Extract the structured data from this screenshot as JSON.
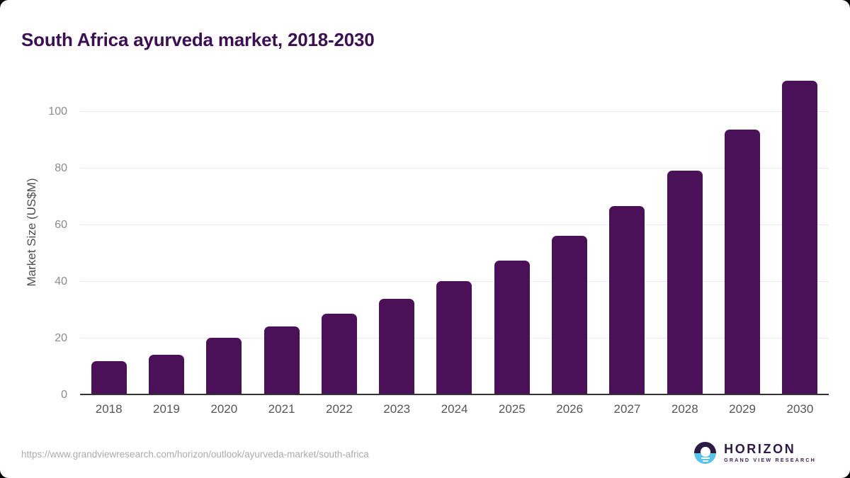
{
  "page": {
    "title": "South Africa ayurveda market, 2018-2030"
  },
  "colors": {
    "bar": "#4a1158",
    "title_text": "#3a0f53",
    "logo_purple": "#2e1a47",
    "logo_subtitle_purple": "#3f2158",
    "logo_blue": "#5ac3ec",
    "gridline": "#eaeaea",
    "axis_line": "#343434"
  },
  "chart_data": {
    "type": "bar",
    "title": "South Africa ayurveda market, 2018-2030",
    "categories": [
      "2018",
      "2019",
      "2020",
      "2021",
      "2022",
      "2023",
      "2024",
      "2025",
      "2026",
      "2027",
      "2028",
      "2029",
      "2030"
    ],
    "values": [
      12.1,
      14.2,
      20.3,
      24.2,
      28.8,
      34.1,
      40.3,
      47.6,
      56.3,
      66.8,
      79.2,
      93.8,
      111.0
    ],
    "xlabel": "",
    "ylabel": "Market Size (US$M)",
    "ylim": [
      0,
      115
    ],
    "y_ticks": [
      0,
      20,
      40,
      60,
      80,
      100
    ],
    "grid": "horizontal",
    "legend": "none",
    "bar_color": "#4a1158"
  },
  "footer": {
    "source_url": "https://www.grandviewresearch.com/horizon/outlook/ayurveda-market/south-africa",
    "logo": {
      "title": "HORIZON",
      "subtitle": "GRAND VIEW RESEARCH"
    }
  }
}
